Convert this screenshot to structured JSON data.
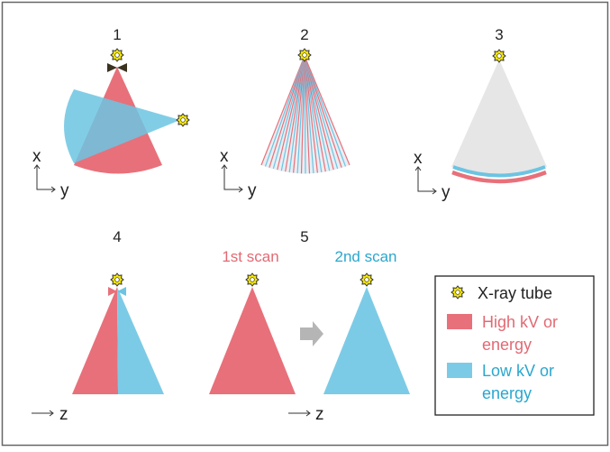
{
  "panels": {
    "p1": "1",
    "p2": "2",
    "p3": "3",
    "p4": "4",
    "p5": "5"
  },
  "scans": {
    "first": "1st scan",
    "second": "2nd scan"
  },
  "axes": {
    "x": "x",
    "y": "y",
    "z": "z"
  },
  "legend": {
    "tube": "X-ray tube",
    "high_line1": "High kV or",
    "high_line2": "energy",
    "low_line1": "Low kV or",
    "low_line2": "energy"
  },
  "colors": {
    "high": "#e8707a",
    "low": "#6cc4e2",
    "text_high": "#e16a74",
    "text_low": "#2aa7cf",
    "star": "#f2e40c"
  }
}
